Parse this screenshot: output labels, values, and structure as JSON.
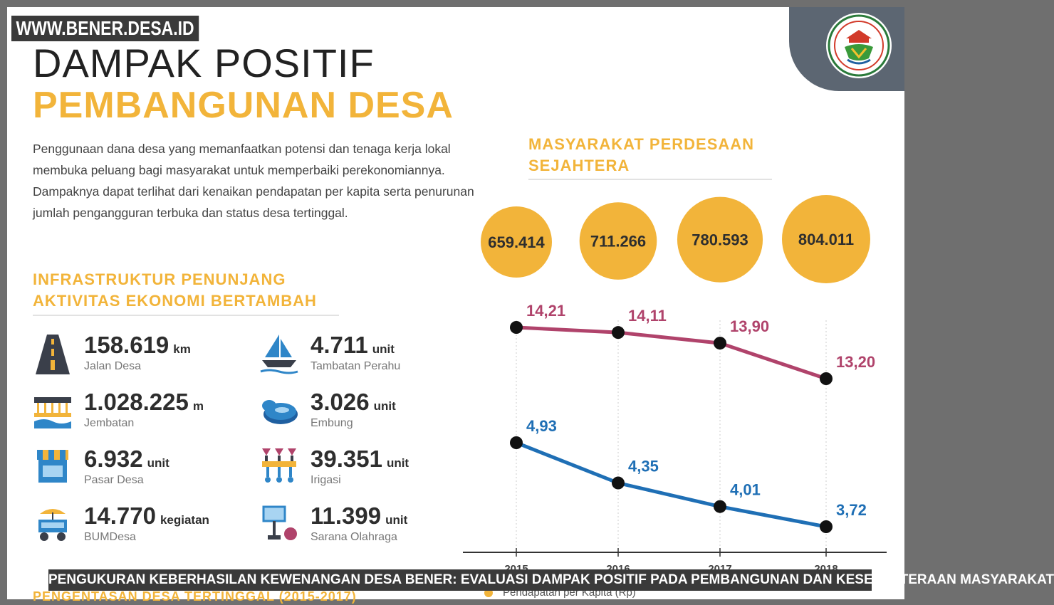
{
  "watermark": "WWW.BENER.DESA.ID",
  "title_line1": "DAMPAK POSITIF",
  "title_line2": "PEMBANGUNAN DESA",
  "intro": "Penggunaan dana desa yang memanfaatkan potensi dan tenaga kerja lokal membuka peluang bagi masyarakat untuk memperbaiki perekonomiannya. Dampaknya dapat terlihat dari kenaikan pendapatan per kapita serta penurunan jumlah pengangguran terbuka dan status desa tertinggal.",
  "infrastructure": {
    "heading_line1": "INFRASTRUKTUR PENUNJANG",
    "heading_line2": "AKTIVITAS EKONOMI BERTAMBAH",
    "items": [
      {
        "value": "158.619",
        "unit": "km",
        "label": "Jalan Desa",
        "icon": "road-icon"
      },
      {
        "value": "1.028.225",
        "unit": "m",
        "label": "Jembatan",
        "icon": "bridge-icon"
      },
      {
        "value": "6.932",
        "unit": "unit",
        "label": "Pasar Desa",
        "icon": "market-icon"
      },
      {
        "value": "14.770",
        "unit": "kegiatan",
        "label": "BUMDesa",
        "icon": "cart-icon"
      },
      {
        "value": "4.711",
        "unit": "unit",
        "label": "Tambatan Perahu",
        "icon": "boat-icon"
      },
      {
        "value": "3.026",
        "unit": "unit",
        "label": "Embung",
        "icon": "pond-icon"
      },
      {
        "value": "39.351",
        "unit": "unit",
        "label": "Irigasi",
        "icon": "irrigation-icon"
      },
      {
        "value": "11.399",
        "unit": "unit",
        "label": "Sarana Olahraga",
        "icon": "sports-icon"
      }
    ]
  },
  "chart_data": {
    "type": "line",
    "title": "MASYARAKAT PERDESAAN SEJAHTERA",
    "title_line1": "MASYARAKAT PERDESAAN",
    "title_line2": "SEJAHTERA",
    "x": [
      "2015",
      "2016",
      "2017",
      "2018"
    ],
    "bubbles": {
      "labels": [
        "659.414",
        "711.266",
        "780.593",
        "804.011"
      ],
      "values": [
        659414,
        711266,
        780593,
        804011
      ],
      "color": "#f2b43a"
    },
    "series": [
      {
        "labels": [
          "14,21",
          "14,11",
          "13,90",
          "13,20"
        ],
        "values": [
          14.21,
          14.11,
          13.9,
          13.2
        ],
        "color": "#b0436b"
      },
      {
        "labels": [
          "4,93",
          "4,35",
          "4,01",
          "3,72"
        ],
        "values": [
          4.93,
          4.35,
          4.01,
          3.72
        ],
        "color": "#1f6fb5"
      }
    ],
    "legend": [
      {
        "label": "Pendapatan per Kapita (Rp)",
        "color": "#f2b43a"
      }
    ]
  },
  "footer_heading": "PENGENTASAN DESA TERTINGGAL (2015-2017)",
  "caption": "PENGUKURAN KEBERHASILAN KEWENANGAN DESA BENER: EVALUASI DAMPAK POSITIF PADA PEMBANGUNAN DAN KESEJAHTERAAN MASYARAKAT",
  "colors": {
    "accent": "#f2b43a",
    "dark": "#2e2e2e",
    "logo_bg": "#5c6672"
  }
}
